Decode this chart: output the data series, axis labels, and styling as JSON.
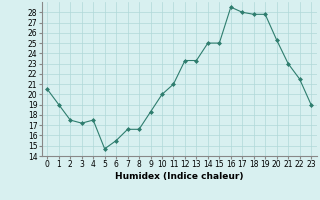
{
  "x": [
    0,
    1,
    2,
    3,
    4,
    5,
    6,
    7,
    8,
    9,
    10,
    11,
    12,
    13,
    14,
    15,
    16,
    17,
    18,
    19,
    20,
    21,
    22,
    23
  ],
  "y": [
    20.5,
    19.0,
    17.5,
    17.2,
    17.5,
    14.7,
    15.5,
    16.6,
    16.6,
    18.3,
    20.0,
    21.0,
    23.3,
    23.3,
    25.0,
    25.0,
    28.5,
    28.0,
    27.8,
    27.8,
    25.3,
    23.0,
    21.5,
    19.0
  ],
  "line_color": "#2e7d6e",
  "marker": "D",
  "marker_size": 2,
  "bg_color": "#d8f0f0",
  "grid_color": "#b0d8d8",
  "xlabel": "Humidex (Indice chaleur)",
  "xlim": [
    -0.5,
    23.5
  ],
  "ylim": [
    14,
    29
  ],
  "yticks": [
    14,
    15,
    16,
    17,
    18,
    19,
    20,
    21,
    22,
    23,
    24,
    25,
    26,
    27,
    28
  ],
  "xtick_labels": [
    "0",
    "1",
    "2",
    "3",
    "4",
    "5",
    "6",
    "7",
    "8",
    "9",
    "10",
    "11",
    "12",
    "13",
    "14",
    "15",
    "16",
    "17",
    "18",
    "19",
    "20",
    "21",
    "22",
    "23"
  ],
  "tick_fontsize": 5.5,
  "xlabel_fontsize": 6.5
}
